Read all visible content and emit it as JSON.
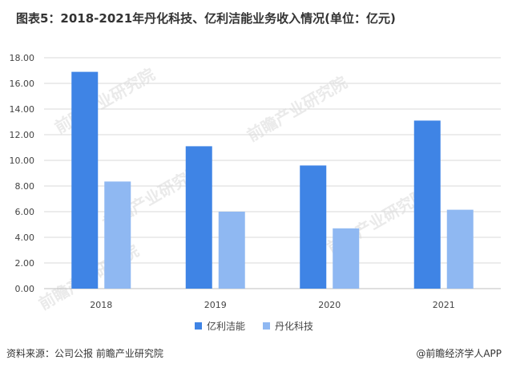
{
  "title": "图表5：2018-2021年丹化科技、亿利洁能业务收入情况(单位：亿元)",
  "source": "资料来源：公司公报 前瞻产业研究院",
  "credit": "@前瞻经济学人APP",
  "watermark": "前瞻产业研究院",
  "colors": {
    "series1": "#3f84e5",
    "series2": "#8fb8f2",
    "grid": "#d9d9d9",
    "axis": "#bfbfbf"
  },
  "chart_data": {
    "type": "bar",
    "categories": [
      "2018",
      "2019",
      "2020",
      "2021"
    ],
    "series": [
      {
        "name": "亿利洁能",
        "values": [
          16.9,
          11.1,
          9.6,
          13.1
        ]
      },
      {
        "name": "丹化科技",
        "values": [
          8.35,
          6.0,
          4.7,
          6.15
        ]
      }
    ],
    "ylim": [
      0,
      18
    ],
    "yticks": [
      "0.00",
      "2.00",
      "4.00",
      "6.00",
      "8.00",
      "10.00",
      "12.00",
      "14.00",
      "16.00",
      "18.00"
    ],
    "grid": true,
    "legend_position": "bottom"
  }
}
